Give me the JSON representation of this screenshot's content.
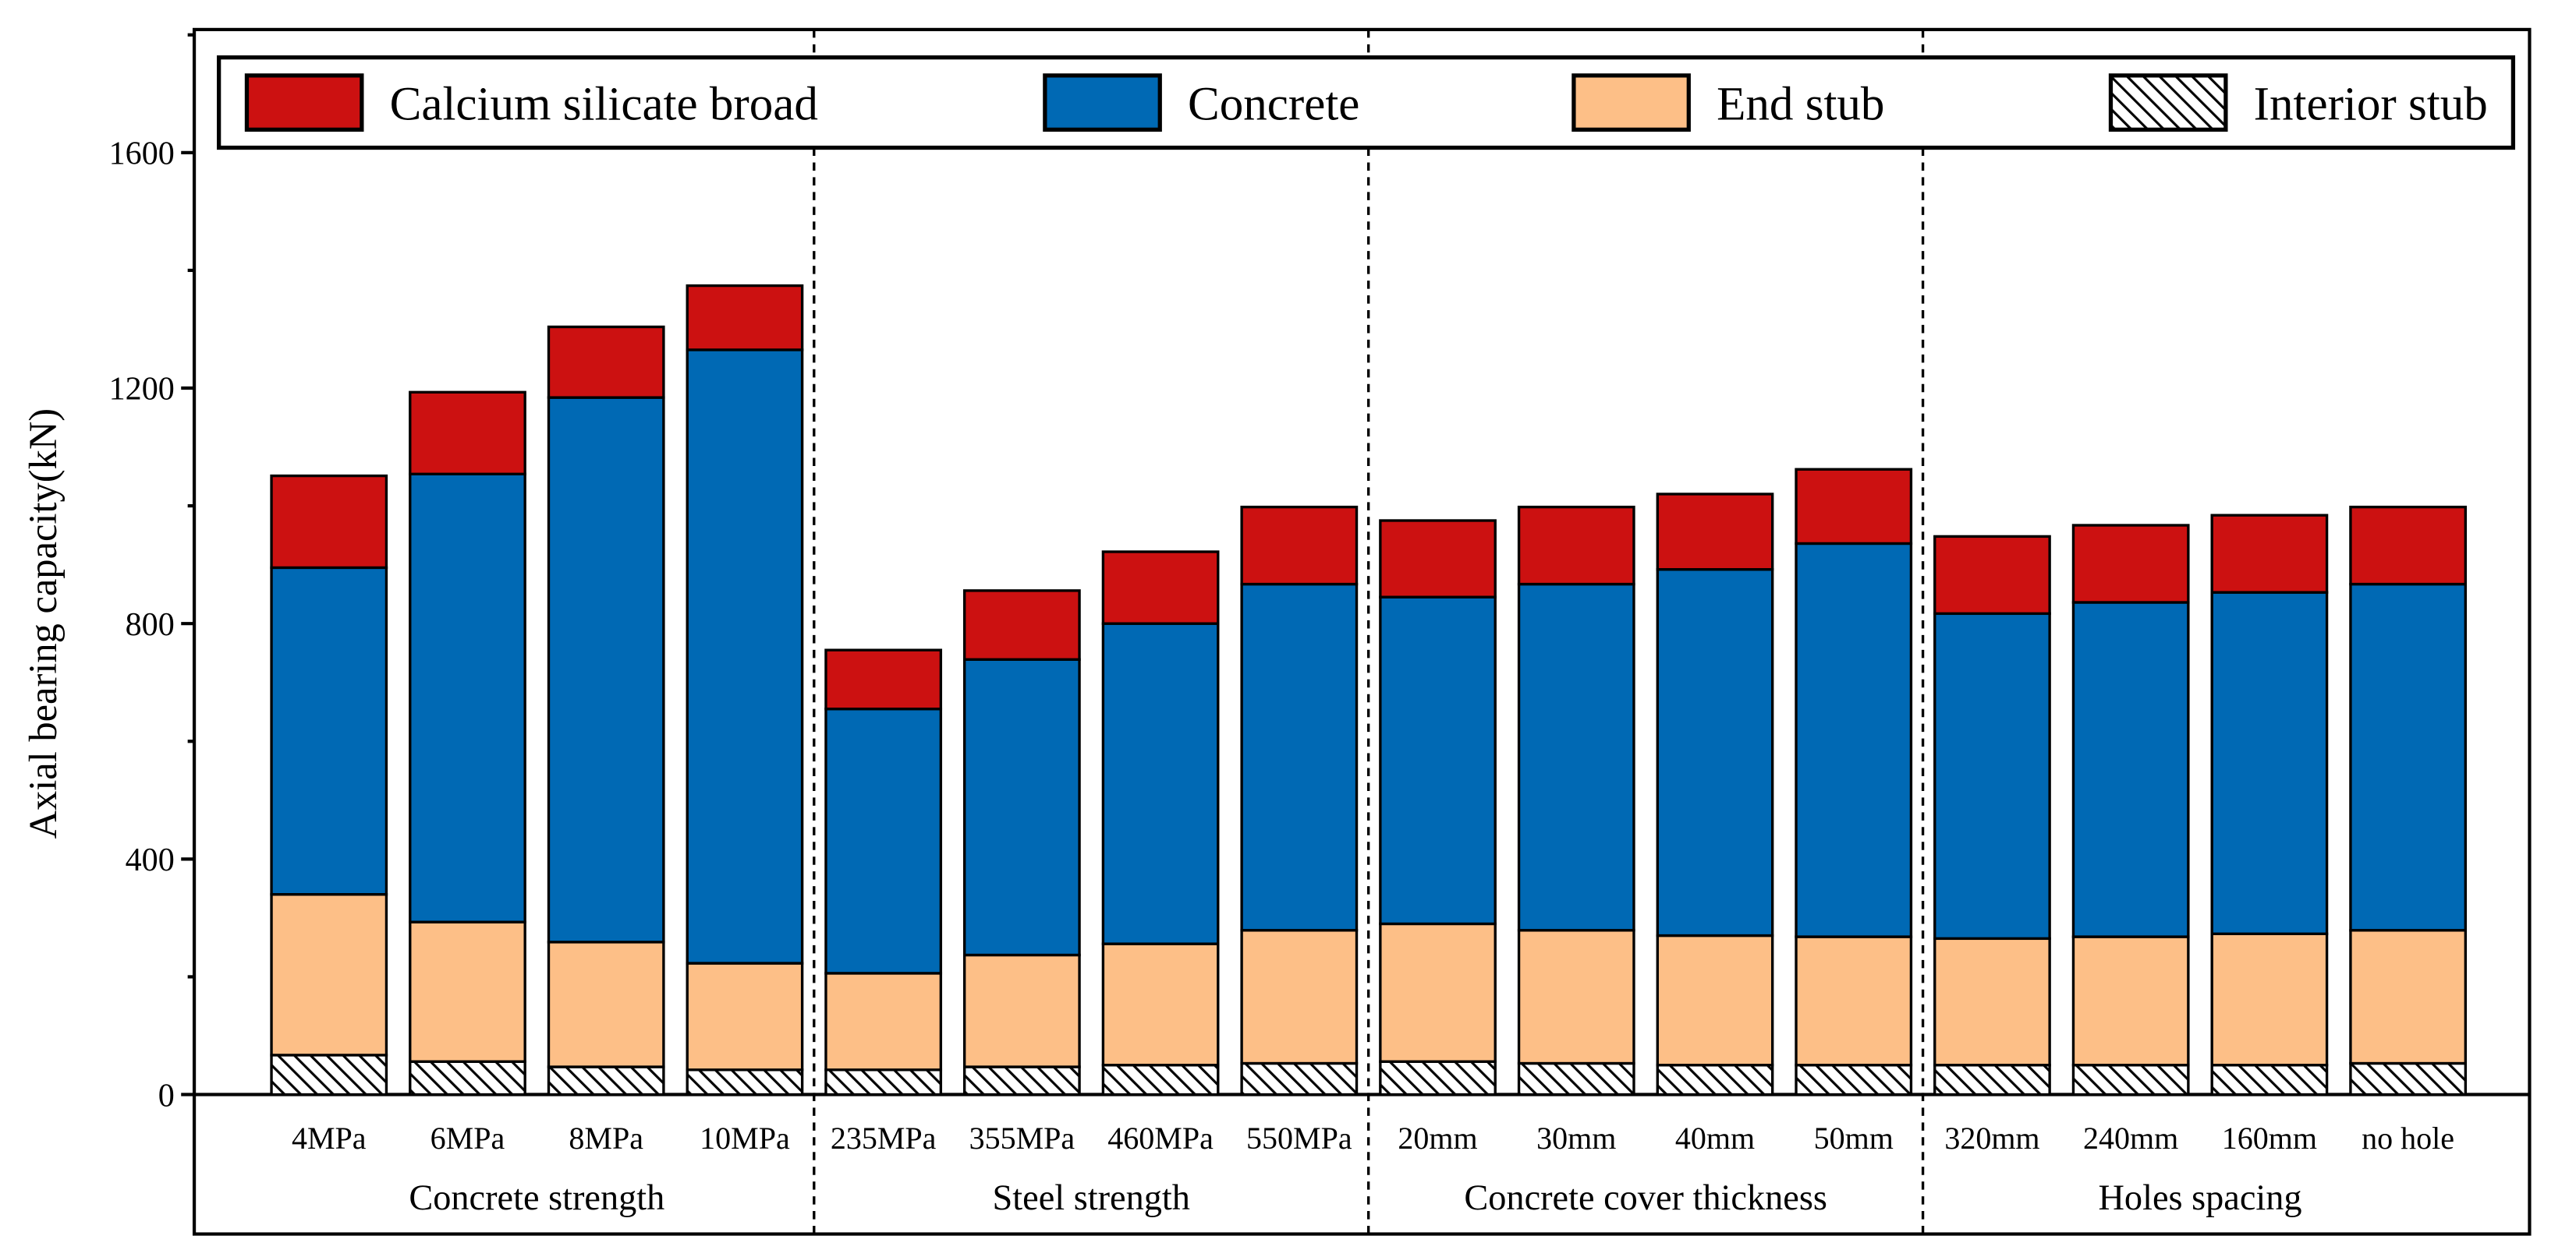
{
  "chart_data": {
    "type": "bar",
    "stacked": true,
    "title": "",
    "ylabel": "Axial bearing capacity(kN)",
    "xlabel": "",
    "ylim": [
      0,
      1800
    ],
    "yticks": [
      0,
      400,
      800,
      1200,
      1600
    ],
    "grid": false,
    "legend_position": "top",
    "categories": [
      "4MPa",
      "6MPa",
      "8MPa",
      "10MPa",
      "235MPa",
      "355MPa",
      "460MPa",
      "550MPa",
      "20mm",
      "30mm",
      "40mm",
      "50mm",
      "320mm",
      "240mm",
      "160mm",
      "no hole"
    ],
    "groups": [
      {
        "label": "Concrete strength",
        "count": 4
      },
      {
        "label": "Steel  strength",
        "count": 4
      },
      {
        "label": "Concrete cover thickness",
        "count": 4
      },
      {
        "label": "Holes spacing",
        "count": 4
      }
    ],
    "series": [
      {
        "name": "Interior stub",
        "color": "#ffffff",
        "hatch": true,
        "values": [
          67,
          56,
          47,
          42,
          42,
          47,
          50,
          53,
          56,
          53,
          50,
          50,
          50,
          50,
          50,
          53
        ]
      },
      {
        "name": "End stub",
        "color": "#fdbf87",
        "hatch": false,
        "values": [
          273,
          237,
          212,
          181,
          164,
          190,
          206,
          226,
          234,
          226,
          220,
          218,
          215,
          218,
          223,
          226
        ]
      },
      {
        "name": "Concrete",
        "color": "#0069b4",
        "hatch": false,
        "values": [
          555,
          761,
          925,
          1042,
          449,
          502,
          544,
          588,
          555,
          588,
          622,
          668,
          552,
          568,
          580,
          588
        ]
      },
      {
        "name": "Calcium silicate broad",
        "color": "#cc1111",
        "hatch": false,
        "values": [
          156,
          139,
          120,
          109,
          100,
          117,
          122,
          131,
          130,
          131,
          128,
          126,
          131,
          131,
          131,
          131
        ]
      }
    ],
    "legend_order": [
      "Calcium silicate broad",
      "Concrete",
      "End stub",
      "Interior stub"
    ]
  }
}
